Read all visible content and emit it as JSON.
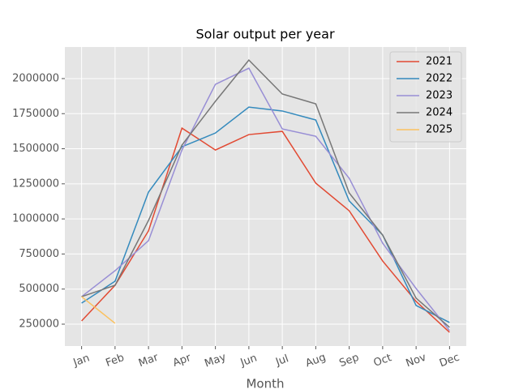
{
  "chart_data": {
    "type": "line",
    "title": "Solar output per year",
    "x_label": "Month",
    "categories": [
      "Jan",
      "Feb",
      "Mar",
      "Apr",
      "May",
      "Jun",
      "Jul",
      "Aug",
      "Sep",
      "Oct",
      "Nov",
      "Dec"
    ],
    "series": [
      {
        "name": "2021",
        "color": "#E24A33",
        "values": [
          273000,
          527000,
          915000,
          1647000,
          1491000,
          1601000,
          1624000,
          1255000,
          1058000,
          700000,
          412000,
          192000
        ]
      },
      {
        "name": "2022",
        "color": "#348ABD",
        "values": [
          400000,
          556000,
          1191000,
          1514000,
          1612000,
          1797000,
          1769000,
          1705000,
          1128000,
          885000,
          383000,
          262000
        ]
      },
      {
        "name": "2023",
        "color": "#988ED5",
        "values": [
          446000,
          631000,
          845000,
          1491000,
          1959000,
          2074000,
          1641000,
          1589000,
          1289000,
          827000,
          504000,
          204000
        ]
      },
      {
        "name": "2024",
        "color": "#777777",
        "values": [
          446000,
          527000,
          989000,
          1526000,
          1838000,
          2132000,
          1890000,
          1820000,
          1185000,
          885000,
          435000,
          227000
        ]
      },
      {
        "name": "2025",
        "color": "#FBC15E",
        "values": [
          446000,
          256000,
          null,
          null,
          null,
          null,
          null,
          null,
          null,
          null,
          null,
          null
        ]
      }
    ],
    "ylim": [
      94000,
      2225000
    ],
    "yticks": [
      250000,
      500000,
      750000,
      1000000,
      1250000,
      1500000,
      1750000,
      2000000
    ],
    "grid": true,
    "legend": "upper right"
  }
}
